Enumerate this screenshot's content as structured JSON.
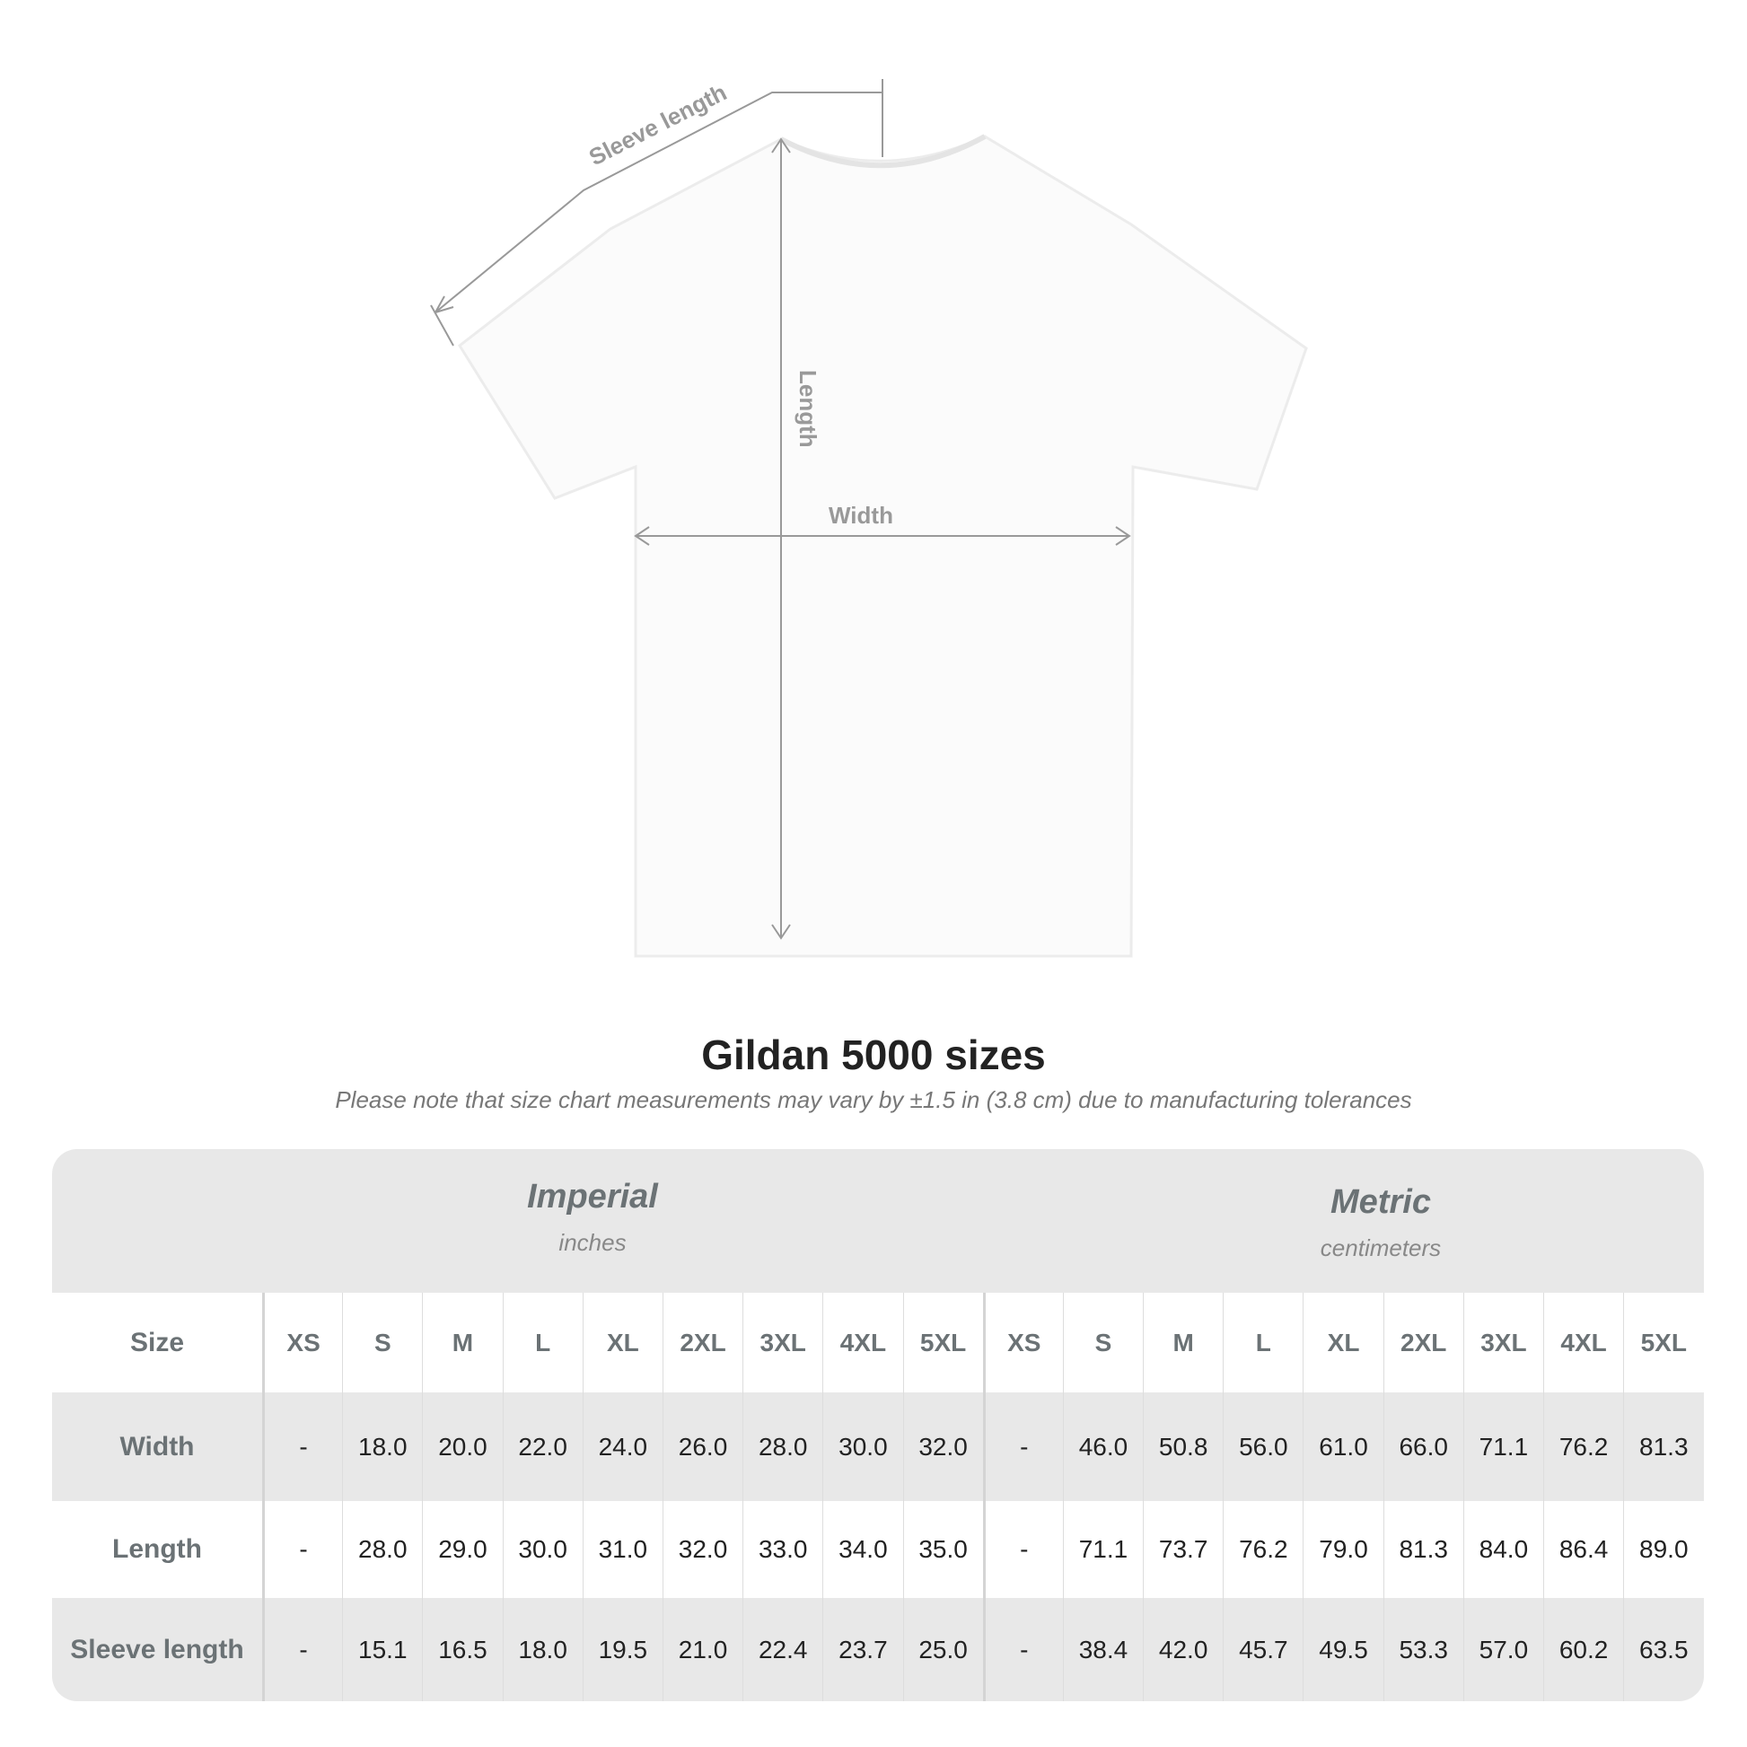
{
  "diagram": {
    "sleeve_label": "Sleeve length",
    "length_label": "Length",
    "width_label": "Width"
  },
  "title": "Gildan 5000 sizes",
  "subtitle": "Please note that size chart measurements may vary by ±1.5 in (3.8 cm) due to manufacturing tolerances",
  "table": {
    "imperial": {
      "name": "Imperial",
      "unit": "inches"
    },
    "metric": {
      "name": "Metric",
      "unit": "centimeters"
    },
    "size_label": "Size",
    "sizes": [
      "XS",
      "S",
      "M",
      "L",
      "XL",
      "2XL",
      "3XL",
      "4XL",
      "5XL",
      "XS",
      "S",
      "M",
      "L",
      "XL",
      "2XL",
      "3XL",
      "4XL",
      "5XL"
    ],
    "rows": [
      {
        "label": "Width",
        "values": [
          "-",
          "18.0",
          "20.0",
          "22.0",
          "24.0",
          "26.0",
          "28.0",
          "30.0",
          "32.0",
          "-",
          "46.0",
          "50.8",
          "56.0",
          "61.0",
          "66.0",
          "71.1",
          "76.2",
          "81.3"
        ]
      },
      {
        "label": "Length",
        "values": [
          "-",
          "28.0",
          "29.0",
          "30.0",
          "31.0",
          "32.0",
          "33.0",
          "34.0",
          "35.0",
          "-",
          "71.1",
          "73.7",
          "76.2",
          "79.0",
          "81.3",
          "84.0",
          "86.4",
          "89.0"
        ]
      },
      {
        "label": "Sleeve length",
        "values": [
          "-",
          "15.1",
          "16.5",
          "18.0",
          "19.5",
          "21.0",
          "22.4",
          "23.7",
          "25.0",
          "-",
          "38.4",
          "42.0",
          "45.7",
          "49.5",
          "53.3",
          "57.0",
          "60.2",
          "63.5"
        ]
      }
    ]
  }
}
